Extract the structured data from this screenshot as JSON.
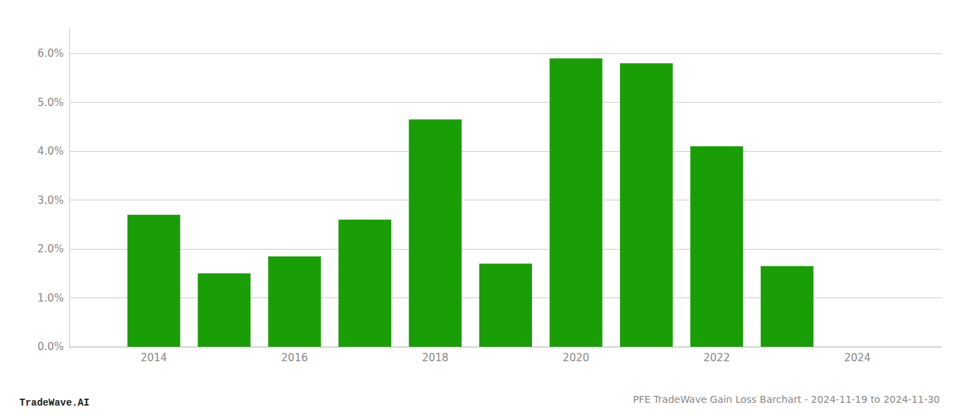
{
  "chart_data": {
    "type": "bar",
    "title": "PFE TradeWave Gain Loss Barchart - 2024-11-19 to 2024-11-30",
    "annotations": [
      "TradeWave.AI"
    ],
    "x": [
      2014,
      2015,
      2016,
      2017,
      2018,
      2019,
      2020,
      2021,
      2022,
      2023
    ],
    "values": [
      0.027,
      0.015,
      0.0185,
      0.026,
      0.0465,
      0.017,
      0.059,
      0.058,
      0.041,
      0.0165
    ],
    "color": "#1a9e06",
    "xlim": [
      2012.8,
      2025.2
    ],
    "xticks": [
      2014,
      2016,
      2018,
      2020,
      2022,
      2024
    ],
    "ylim": [
      0,
      0.065
    ],
    "yticks": [
      {
        "value": 0.0,
        "label": "0.0%"
      },
      {
        "value": 0.01,
        "label": "1.0%"
      },
      {
        "value": 0.02,
        "label": "2.0%"
      },
      {
        "value": 0.03,
        "label": "3.0%"
      },
      {
        "value": 0.04,
        "label": "4.0%"
      },
      {
        "value": 0.05,
        "label": "5.0%"
      },
      {
        "value": 0.06,
        "label": "6.0%"
      }
    ],
    "grid": true
  }
}
